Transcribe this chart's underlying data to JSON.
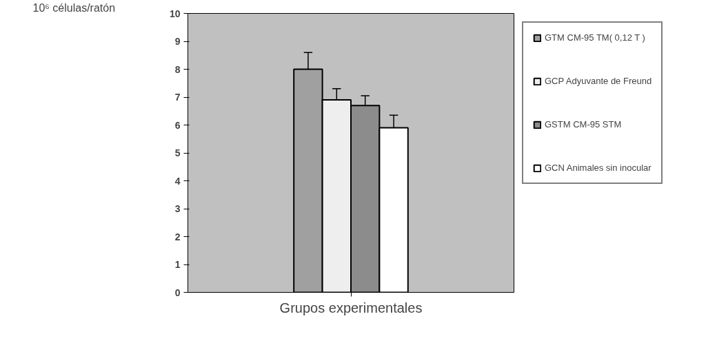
{
  "chart_data": {
    "type": "bar",
    "ylabel": "10⁶ células/ratón",
    "xlabel": "Grupos experimentales",
    "categories": [
      null
    ],
    "series": [
      {
        "name": "GTM CM-95 TM( 0,12 T )",
        "color": "#a0a0a0",
        "values": [
          8.0
        ],
        "errors": [
          [
            8.0,
            8.6
          ]
        ]
      },
      {
        "name": "GCP Adyuvante de Freund",
        "color": "#eeeeee",
        "values": [
          6.9
        ],
        "errors": [
          [
            6.9,
            7.3
          ]
        ]
      },
      {
        "name": "GSTM CM-95 STM",
        "color": "#8c8c8c",
        "values": [
          6.7
        ],
        "errors": [
          [
            6.7,
            7.05
          ]
        ]
      },
      {
        "name": "GCN Animales sin inocular",
        "color": "#ffffff",
        "values": [
          5.9
        ],
        "errors": [
          [
            5.9,
            6.35
          ]
        ]
      }
    ],
    "ylim": [
      0,
      10
    ],
    "yticks": [
      0,
      1,
      2,
      3,
      4,
      5,
      6,
      7,
      8,
      9,
      10
    ],
    "grid": false,
    "legend": "right",
    "tick_labels": "y"
  }
}
